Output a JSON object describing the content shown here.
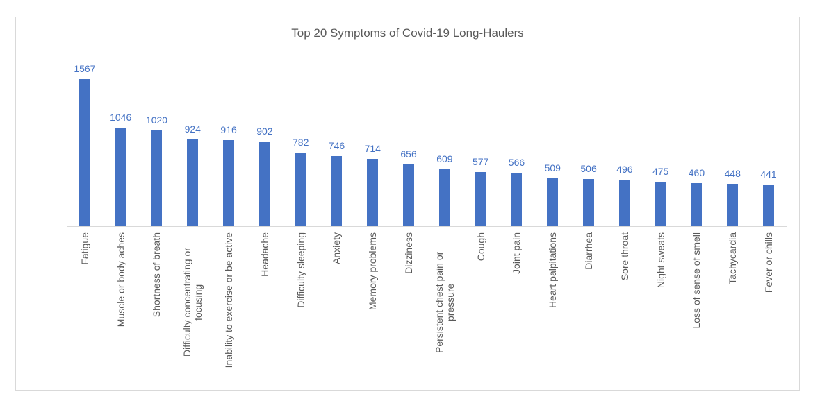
{
  "chart_data": {
    "type": "bar",
    "title": "Top 20 Symptoms of Covid-19 Long-Haulers",
    "categories": [
      "Fatigue",
      "Muscle or body aches",
      "Shortness of breath",
      "Difficulty concentrating or focusing",
      "Inability to exercise or be active",
      "Headache",
      "Difficulty sleeping",
      "Anxiety",
      "Memory problems",
      "Dizziness",
      "Persistent chest pain or pressure",
      "Cough",
      "Joint pain",
      "Heart palpitations",
      "Diarrhea",
      "Sore throat",
      "Night sweats",
      "Loss of sense of smell",
      "Tachycardia",
      "Fever or chills"
    ],
    "values": [
      1567,
      1046,
      1020,
      924,
      916,
      902,
      782,
      746,
      714,
      656,
      609,
      577,
      566,
      509,
      506,
      496,
      475,
      460,
      448,
      441
    ],
    "xlabel": "",
    "ylabel": "",
    "ylim": [
      0,
      1600
    ],
    "grid": false,
    "legend_position": "none",
    "data_labels": true,
    "bar_color": "#4472C4",
    "value_label_color": "#4472C4",
    "title_color": "#595959",
    "category_label_color": "#595959",
    "axis_line_color": "#D9D9D9",
    "frame_border_color": "#D9D9D9"
  }
}
